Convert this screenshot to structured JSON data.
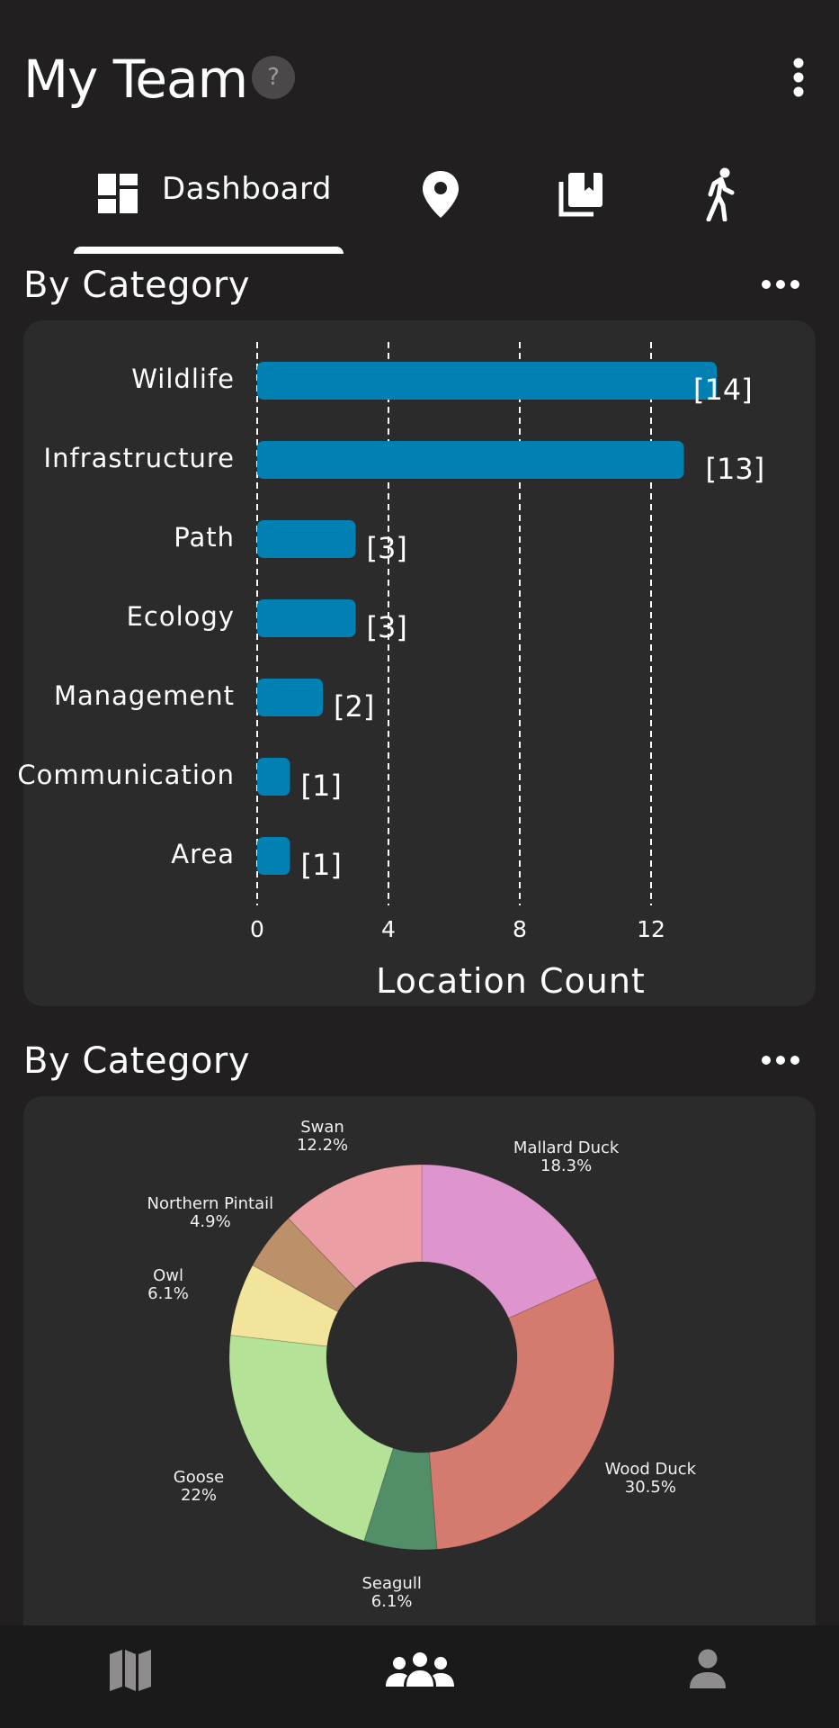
{
  "header": {
    "title": "My Team",
    "help_label": "?"
  },
  "tabs": {
    "dashboard_label": "Dashboard",
    "active": "Dashboard",
    "icons": [
      "dashboard-icon",
      "map-pin-icon",
      "library-icon",
      "walk-icon"
    ]
  },
  "sections": {
    "bar_title": "By Category",
    "donut_title": "By Category"
  },
  "colors": {
    "background": "#211f20",
    "card": "#2b2b2c",
    "bar": "#0080b3"
  },
  "chart_data": [
    {
      "type": "bar",
      "orientation": "horizontal",
      "categories": [
        "Wildlife",
        "Infrastructure",
        "Path",
        "Ecology",
        "Management",
        "Communication",
        "Area"
      ],
      "values": [
        14,
        13,
        3,
        3,
        2,
        1,
        1
      ],
      "value_labels": [
        "[14]",
        "[13]",
        "[3]",
        "[3]",
        "[2]",
        "[1]",
        "[1]"
      ],
      "xlabel": "Location Count",
      "xticks": [
        "0",
        "4",
        "8",
        "12"
      ],
      "xlim": [
        0,
        14
      ],
      "grid": "vertical dashed"
    },
    {
      "type": "pie",
      "style": "donut",
      "slices": [
        {
          "label": "Mallard Duck",
          "pct_label": "18.3%",
          "value": 18.3,
          "color": "#de95cd"
        },
        {
          "label": "Wood Duck",
          "pct_label": "30.5%",
          "value": 30.5,
          "color": "#d57a6e"
        },
        {
          "label": "Seagull",
          "pct_label": "6.1%",
          "value": 6.1,
          "color": "#528e67"
        },
        {
          "label": "Goose",
          "pct_label": "22%",
          "value": 22,
          "color": "#b4e398"
        },
        {
          "label": "Owl",
          "pct_label": "6.1%",
          "value": 6.1,
          "color": "#f3e49c"
        },
        {
          "label": "Northern Pintail",
          "pct_label": "4.9%",
          "value": 4.9,
          "color": "#bc9068"
        },
        {
          "label": "Swan",
          "pct_label": "12.2%",
          "value": 12.2,
          "color": "#eb9fa4"
        }
      ]
    }
  ],
  "bottom_nav": {
    "items": [
      "map-icon",
      "team-icon",
      "profile-icon"
    ],
    "active": "team-icon"
  }
}
